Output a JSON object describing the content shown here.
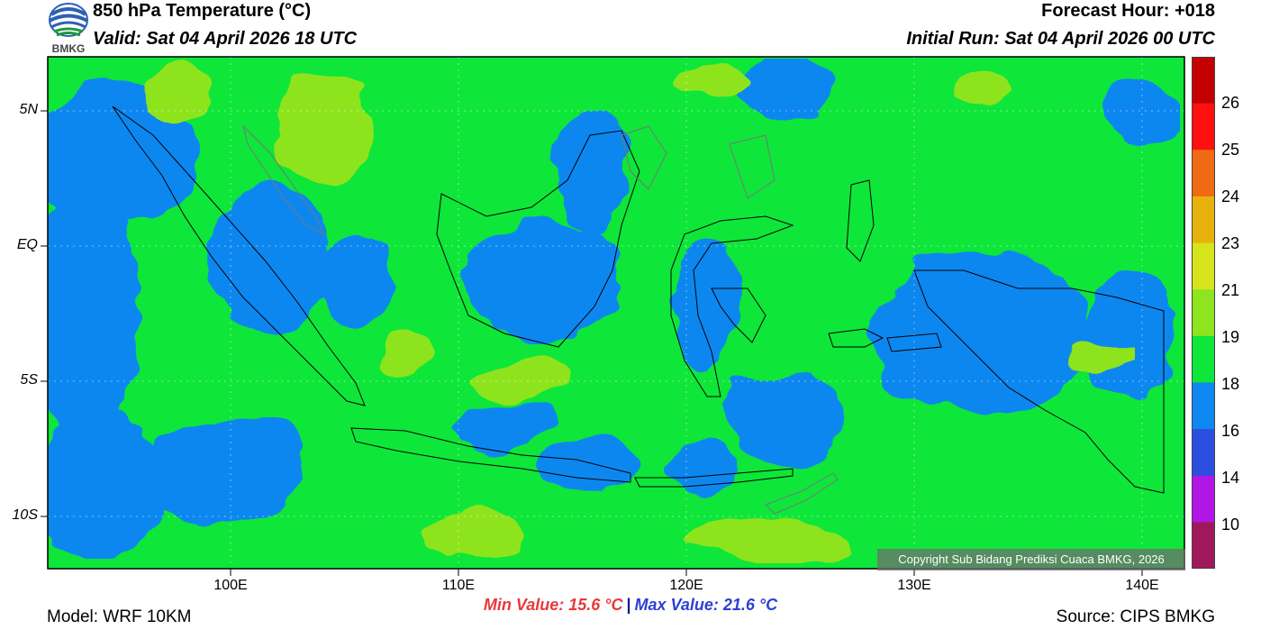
{
  "header": {
    "title": "850 hPa Temperature (°C)",
    "valid": "Valid: Sat 04 April 2026 18 UTC",
    "forecast_hour": "Forecast Hour: +018",
    "initial_run": "Initial Run: Sat 04 April 2026 00 UTC",
    "logo_text": "BMKG"
  },
  "map": {
    "lat_labels": [
      "5N",
      "EQ",
      "5S",
      "10S"
    ],
    "lon_labels": [
      "100E",
      "110E",
      "120E",
      "130E",
      "140E"
    ],
    "copyright": "Copyright Sub Bidang Prediksi Cuaca BMKG, 2026"
  },
  "colorbar": {
    "labels": [
      "26",
      "25",
      "24",
      "23",
      "21",
      "19",
      "18",
      "16",
      "14",
      "10"
    ],
    "colors": [
      "#c40000",
      "#ff1010",
      "#ef6a12",
      "#e8b20c",
      "#d7e41c",
      "#8ee41f",
      "#0ee63a",
      "#0f87f0",
      "#2b4ee0",
      "#b017e6",
      "#a0185c"
    ]
  },
  "footer": {
    "min_value": "Min Value: 15.6 °C",
    "separator": "|",
    "max_value": "Max Value: 21.6 °C",
    "model": "Model: WRF 10KM",
    "source": "Source: CIPS BMKG"
  }
}
